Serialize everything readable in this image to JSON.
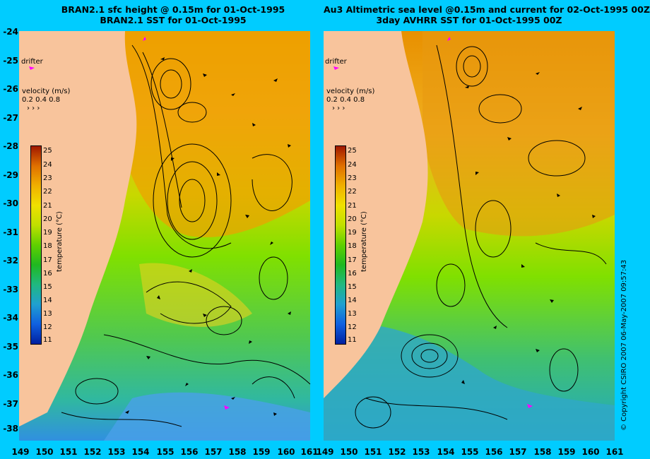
{
  "left_panel": {
    "title_line1": "BRAN2.1 sfc height @ 0.15m for 01-Oct-1995",
    "title_line2": "BRAN2.1 SST for 01-Oct-1995"
  },
  "right_panel": {
    "title_line1": "Au3 Altimetric sea level  @0.15m and current for 02-Oct-1995 00Z",
    "title_line2": "3day AVHRR SST for 01-Oct-1995 00Z"
  },
  "drifter_label": "drifter",
  "velocity_label": "velocity (m/s)",
  "velocity_scale": "0.2 0.4 0.8",
  "colorbar": {
    "title": "temperature (°C)",
    "ticks": [
      "25",
      "24",
      "23",
      "22",
      "21",
      "20",
      "19",
      "18",
      "17",
      "16",
      "15",
      "14",
      "13",
      "12",
      "11"
    ]
  },
  "latitude_labels": [
    "-24",
    "-25",
    "-26",
    "-27",
    "-28",
    "-29",
    "-30",
    "-31",
    "-32",
    "-33",
    "-34",
    "-35",
    "-36",
    "-37",
    "-38"
  ],
  "longitude_labels": [
    "149",
    "150",
    "151",
    "152",
    "153",
    "154",
    "155",
    "156",
    "157",
    "158",
    "159",
    "160",
    "161"
  ],
  "copyright": "© Copyright CSIRO 2007  06-May-2007 09:57:43",
  "colors": {
    "background": "#00ccff",
    "land": "#f8c49c",
    "drifter": "#ff00ff",
    "warm": "#e8a000",
    "mid": "#80e000",
    "cool": "#20a8c8"
  }
}
